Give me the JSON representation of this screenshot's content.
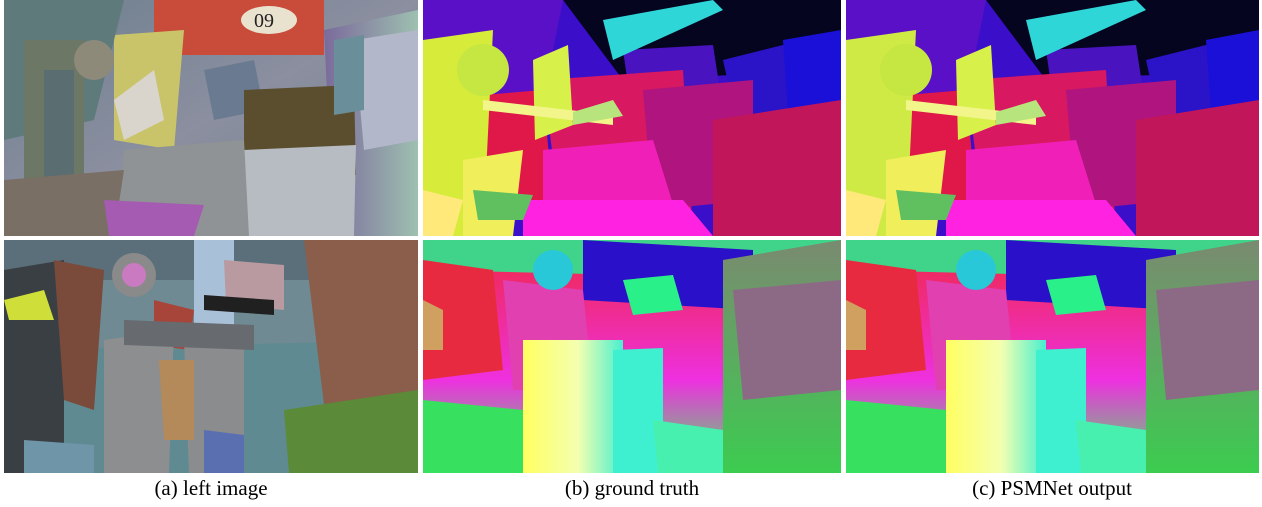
{
  "captions": {
    "left_image": "(a) left image",
    "ground_truth": "(b) ground truth",
    "psmnet_output": "(c) PSMNet output"
  }
}
